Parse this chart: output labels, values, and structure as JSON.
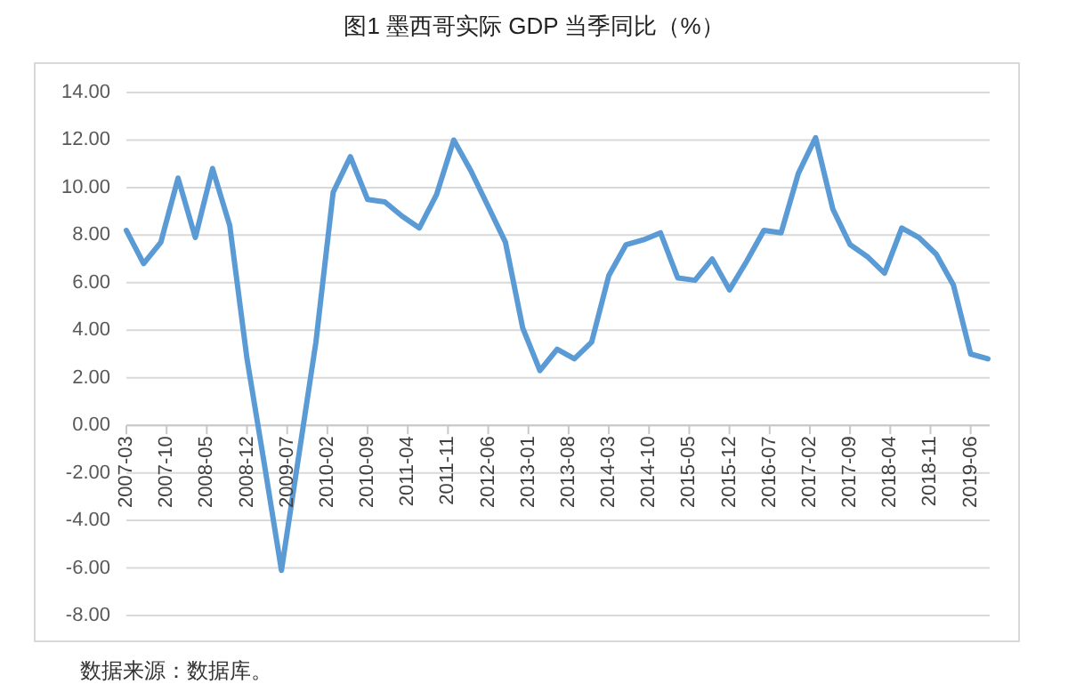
{
  "chart_data": {
    "type": "line",
    "title": "图1 墨西哥实际 GDP 当季同比（%）",
    "x": [
      "2007-03",
      "2007-06",
      "2007-09",
      "2007-12",
      "2008-03",
      "2008-06",
      "2008-09",
      "2008-12",
      "2009-03",
      "2009-06",
      "2009-09",
      "2009-12",
      "2010-03",
      "2010-06",
      "2010-09",
      "2010-12",
      "2011-03",
      "2011-06",
      "2011-09",
      "2011-12",
      "2012-03",
      "2012-06",
      "2012-09",
      "2012-12",
      "2013-03",
      "2013-06",
      "2013-09",
      "2013-12",
      "2014-03",
      "2014-06",
      "2014-09",
      "2014-12",
      "2015-03",
      "2015-06",
      "2015-09",
      "2015-12",
      "2016-03",
      "2016-06",
      "2016-09",
      "2016-12",
      "2017-03",
      "2017-06",
      "2017-09",
      "2017-12",
      "2018-03",
      "2018-06",
      "2018-09",
      "2018-12",
      "2019-03",
      "2019-06",
      "2019-09"
    ],
    "series": [
      {
        "color": "#5b9bd5",
        "values": [
          8.2,
          6.8,
          7.7,
          10.4,
          7.9,
          10.8,
          8.4,
          2.8,
          -1.6,
          -6.1,
          -1.3,
          3.5,
          9.8,
          11.3,
          9.5,
          9.4,
          8.8,
          8.3,
          9.7,
          12.0,
          10.7,
          9.2,
          7.7,
          4.1,
          2.3,
          3.2,
          2.8,
          3.5,
          6.3,
          7.6,
          7.8,
          8.1,
          6.2,
          6.1,
          7.0,
          5.7,
          6.9,
          8.2,
          8.1,
          10.6,
          12.1,
          9.1,
          7.6,
          7.1,
          6.4,
          8.3,
          7.9,
          7.2,
          5.9,
          3.0,
          2.8
        ]
      }
    ],
    "xlim": [
      "2007-03",
      "2019-09"
    ],
    "xticks": [
      "2007-03",
      "2007-10",
      "2008-05",
      "2008-12",
      "2009-07",
      "2010-02",
      "2010-09",
      "2011-04",
      "2011-11",
      "2012-06",
      "2013-01",
      "2013-08",
      "2014-03",
      "2014-10",
      "2015-05",
      "2015-12",
      "2016-07",
      "2017-02",
      "2017-09",
      "2018-04",
      "2018-11",
      "2019-06"
    ],
    "ylim": [
      -8,
      14
    ],
    "yticks": [
      {
        "value": -8,
        "label": "-8.00"
      },
      {
        "value": -6,
        "label": "-6.00"
      },
      {
        "value": -4,
        "label": "-4.00"
      },
      {
        "value": -2,
        "label": "-2.00"
      },
      {
        "value": 0,
        "label": "0.00"
      },
      {
        "value": 2,
        "label": "2.00"
      },
      {
        "value": 4,
        "label": "4.00"
      },
      {
        "value": 6,
        "label": "6.00"
      },
      {
        "value": 8,
        "label": "8.00"
      },
      {
        "value": 10,
        "label": "10.00"
      },
      {
        "value": 12,
        "label": "12.00"
      },
      {
        "value": 14,
        "label": "14.00"
      }
    ],
    "grid": "y",
    "annotations": [
      "数据来源：数据库。"
    ]
  }
}
